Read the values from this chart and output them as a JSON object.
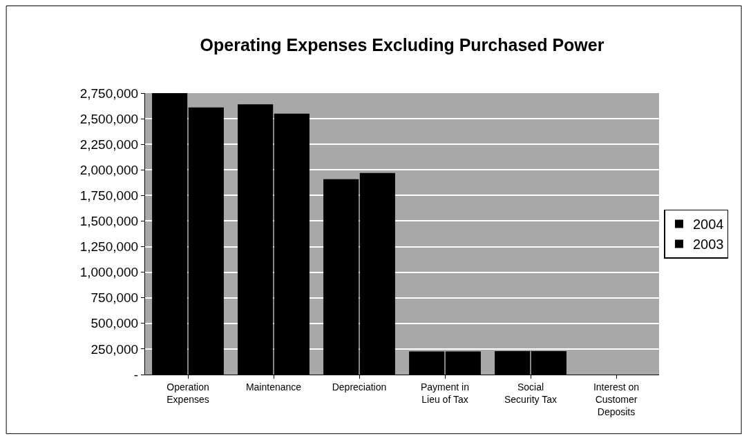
{
  "chart_data": {
    "type": "bar",
    "title": "Operating Expenses Excluding Purchased Power",
    "categories": [
      "Operation Expenses",
      "Maintenance",
      "Depreciation",
      "Payment in Lieu of Tax",
      "Social Security Tax",
      "Interest on Customer Deposits"
    ],
    "series": [
      {
        "name": "2004",
        "color": "#000000",
        "values": [
          2750000,
          2640000,
          1910000,
          225000,
          230000,
          0
        ]
      },
      {
        "name": "2003",
        "color": "#000000",
        "values": [
          2610000,
          2550000,
          1970000,
          225000,
          230000,
          0
        ]
      }
    ],
    "ylim": [
      0,
      2750000
    ],
    "yticks": [
      {
        "value": 0,
        "label": "-"
      },
      {
        "value": 250000,
        "label": "250,000"
      },
      {
        "value": 500000,
        "label": "500,000"
      },
      {
        "value": 750000,
        "label": "750,000"
      },
      {
        "value": 1000000,
        "label": "1,000,000"
      },
      {
        "value": 1250000,
        "label": "1,250,000"
      },
      {
        "value": 1500000,
        "label": "1,500,000"
      },
      {
        "value": 1750000,
        "label": "1,750,000"
      },
      {
        "value": 2000000,
        "label": "2,000,000"
      },
      {
        "value": 2250000,
        "label": "2,250,000"
      },
      {
        "value": 2500000,
        "label": "2,500,000"
      },
      {
        "value": 2750000,
        "label": "2,750,000"
      }
    ],
    "grid": "y",
    "legend": "right"
  }
}
